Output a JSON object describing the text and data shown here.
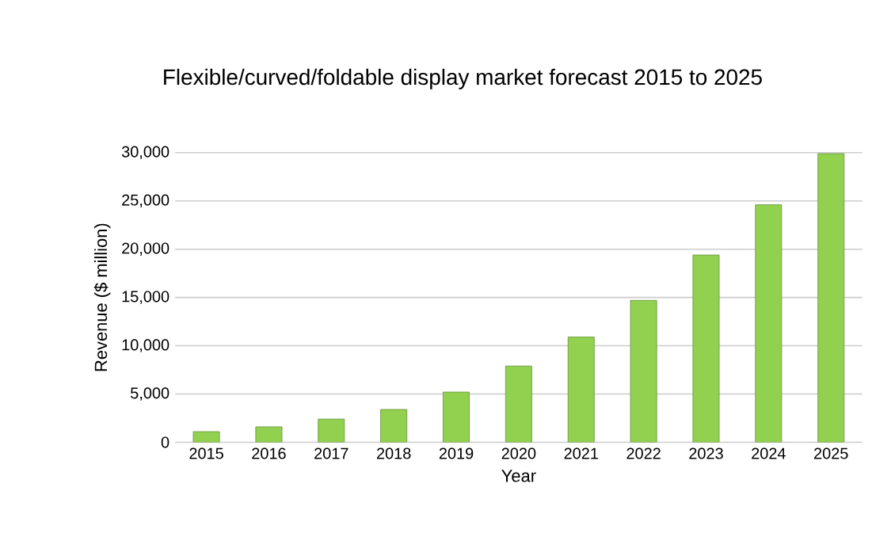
{
  "chart_data": {
    "type": "bar",
    "title": "Flexible/curved/foldable display market forecast 2015 to 2025",
    "xlabel": "Year",
    "ylabel": "Revenue ($ million)",
    "categories": [
      "2015",
      "2016",
      "2017",
      "2018",
      "2019",
      "2020",
      "2021",
      "2022",
      "2023",
      "2024",
      "2025"
    ],
    "values": [
      1100,
      1600,
      2400,
      3400,
      5200,
      7900,
      10900,
      14700,
      19400,
      24600,
      29900
    ],
    "color": "#92d050",
    "ylim": [
      0,
      30000
    ],
    "yticks": [
      {
        "value": 0,
        "label": "0"
      },
      {
        "value": 5000,
        "label": "5,000"
      },
      {
        "value": 10000,
        "label": "10,000"
      },
      {
        "value": 15000,
        "label": "15,000"
      },
      {
        "value": 20000,
        "label": "20,000"
      },
      {
        "value": 25000,
        "label": "25,000"
      },
      {
        "value": 30000,
        "label": "30,000"
      }
    ],
    "grid": "y"
  }
}
